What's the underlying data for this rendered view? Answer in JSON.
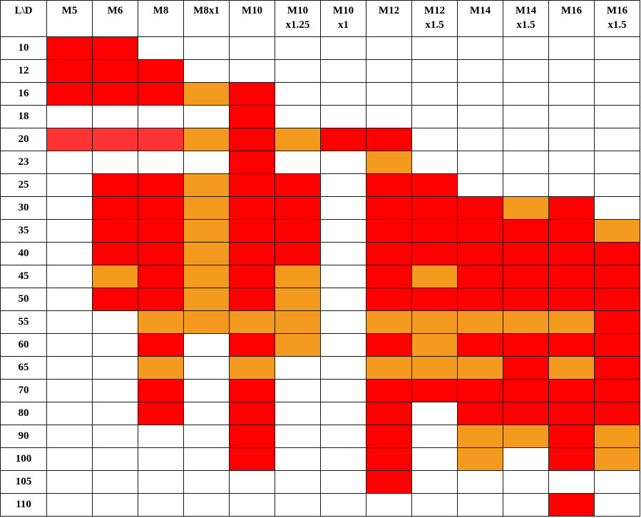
{
  "table": {
    "corner": "L\\D",
    "columns": [
      [
        "M5"
      ],
      [
        "M6"
      ],
      [
        "M8"
      ],
      [
        "M8x1"
      ],
      [
        "M10"
      ],
      [
        "M10",
        "x1.25"
      ],
      [
        "M10",
        "x1"
      ],
      [
        "M12"
      ],
      [
        "M12",
        "x1.5"
      ],
      [
        "M14"
      ],
      [
        "M14",
        "x1.5"
      ],
      [
        "M16"
      ],
      [
        "M16",
        "x1.5"
      ]
    ],
    "legend_colors": {
      "R": "#ff0000",
      "O": "#f39a1f",
      "L": "#ff3333",
      "W": "#ffffff"
    },
    "rows": [
      {
        "length": "10",
        "cells": [
          "R",
          "R",
          "W",
          "W",
          "W",
          "W",
          "W",
          "W",
          "W",
          "W",
          "W",
          "W",
          "W"
        ]
      },
      {
        "length": "12",
        "cells": [
          "R",
          "R",
          "R",
          "W",
          "W",
          "W",
          "W",
          "W",
          "W",
          "W",
          "W",
          "W",
          "W"
        ]
      },
      {
        "length": "16",
        "cells": [
          "R",
          "R",
          "R",
          "O",
          "R",
          "W",
          "W",
          "W",
          "W",
          "W",
          "W",
          "W",
          "W"
        ]
      },
      {
        "length": "18",
        "cells": [
          "W",
          "W",
          "W",
          "W",
          "R",
          "W",
          "W",
          "W",
          "W",
          "W",
          "W",
          "W",
          "W"
        ]
      },
      {
        "length": "20",
        "cells": [
          "L",
          "L",
          "L",
          "O",
          "R",
          "O",
          "R",
          "R",
          "W",
          "W",
          "W",
          "W",
          "W"
        ]
      },
      {
        "length": "23",
        "cells": [
          "W",
          "W",
          "W",
          "W",
          "R",
          "W",
          "W",
          "O",
          "W",
          "W",
          "W",
          "W",
          "W"
        ]
      },
      {
        "length": "25",
        "cells": [
          "W",
          "R",
          "R",
          "O",
          "R",
          "R",
          "W",
          "R",
          "R",
          "W",
          "W",
          "W",
          "W"
        ]
      },
      {
        "length": "30",
        "cells": [
          "W",
          "R",
          "R",
          "O",
          "R",
          "R",
          "W",
          "R",
          "R",
          "R",
          "O",
          "R",
          "W"
        ]
      },
      {
        "length": "35",
        "cells": [
          "W",
          "R",
          "R",
          "O",
          "R",
          "R",
          "W",
          "R",
          "R",
          "R",
          "R",
          "R",
          "O"
        ]
      },
      {
        "length": "40",
        "cells": [
          "W",
          "R",
          "R",
          "O",
          "R",
          "R",
          "W",
          "R",
          "R",
          "R",
          "R",
          "R",
          "R"
        ]
      },
      {
        "length": "45",
        "cells": [
          "W",
          "O",
          "R",
          "O",
          "R",
          "O",
          "W",
          "R",
          "O",
          "R",
          "R",
          "R",
          "R"
        ]
      },
      {
        "length": "50",
        "cells": [
          "W",
          "R",
          "R",
          "O",
          "R",
          "O",
          "W",
          "R",
          "R",
          "R",
          "R",
          "R",
          "R"
        ]
      },
      {
        "length": "55",
        "cells": [
          "W",
          "W",
          "O",
          "O",
          "O",
          "O",
          "W",
          "O",
          "O",
          "O",
          "O",
          "O",
          "R"
        ]
      },
      {
        "length": "60",
        "cells": [
          "W",
          "W",
          "R",
          "W",
          "R",
          "O",
          "W",
          "R",
          "O",
          "R",
          "R",
          "R",
          "R"
        ]
      },
      {
        "length": "65",
        "cells": [
          "W",
          "W",
          "O",
          "W",
          "O",
          "W",
          "W",
          "O",
          "O",
          "O",
          "R",
          "O",
          "R"
        ]
      },
      {
        "length": "70",
        "cells": [
          "W",
          "W",
          "R",
          "W",
          "R",
          "W",
          "W",
          "R",
          "R",
          "R",
          "R",
          "R",
          "R"
        ]
      },
      {
        "length": "80",
        "cells": [
          "W",
          "W",
          "R",
          "W",
          "R",
          "W",
          "W",
          "R",
          "W",
          "R",
          "R",
          "R",
          "R"
        ]
      },
      {
        "length": "90",
        "cells": [
          "W",
          "W",
          "W",
          "W",
          "R",
          "W",
          "W",
          "R",
          "W",
          "O",
          "O",
          "R",
          "O"
        ]
      },
      {
        "length": "100",
        "cells": [
          "W",
          "W",
          "W",
          "W",
          "R",
          "W",
          "W",
          "R",
          "W",
          "O",
          "W",
          "R",
          "O"
        ]
      },
      {
        "length": "105",
        "cells": [
          "W",
          "W",
          "W",
          "W",
          "W",
          "W",
          "W",
          "R",
          "W",
          "W",
          "W",
          "W",
          "W"
        ]
      },
      {
        "length": "110",
        "cells": [
          "W",
          "W",
          "W",
          "W",
          "W",
          "W",
          "W",
          "W",
          "W",
          "W",
          "W",
          "R",
          "W"
        ]
      }
    ]
  }
}
